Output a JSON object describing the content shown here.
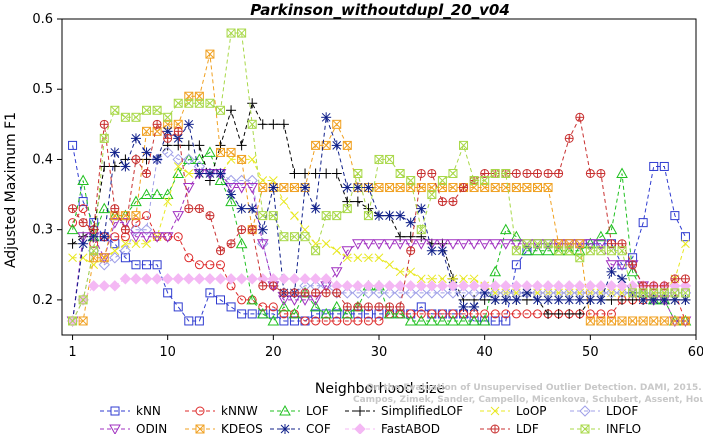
{
  "chart_data": {
    "type": "line",
    "title": "Parkinson_withoutdupl_20_v04",
    "xlabel": "Neighborhood size",
    "ylabel": "Adjusted Maximum F1",
    "xlim": [
      0,
      60
    ],
    "ylim": [
      0.15,
      0.6
    ],
    "xticks": [
      1,
      10,
      20,
      30,
      40,
      50,
      60
    ],
    "yticks": [
      0.2,
      0.3,
      0.4,
      0.5,
      0.6
    ],
    "grid": false,
    "legend_position": "bottom",
    "watermark": [
      "Campos, Zimek, Sander, Campello, Micenkova, Schubert, Assent, Houle",
      "On the Evaluation of Unsupervised Outlier Detection. DAMI, 2015."
    ],
    "x": [
      1,
      2,
      3,
      4,
      5,
      6,
      7,
      8,
      9,
      10,
      11,
      12,
      13,
      14,
      15,
      16,
      17,
      18,
      19,
      20,
      21,
      22,
      23,
      24,
      25,
      26,
      27,
      28,
      29,
      30,
      31,
      32,
      33,
      34,
      35,
      36,
      37,
      38,
      39,
      40,
      41,
      42,
      43,
      44,
      45,
      46,
      47,
      48,
      49,
      50,
      51,
      52,
      53,
      54,
      55,
      56,
      57,
      58,
      59
    ],
    "series": [
      {
        "name": "kNN",
        "color": "#2f3bd0",
        "marker": "square",
        "line": "dashed",
        "values": [
          0.42,
          0.34,
          0.31,
          0.29,
          0.28,
          0.26,
          0.25,
          0.25,
          0.25,
          0.21,
          0.19,
          0.17,
          0.17,
          0.21,
          0.2,
          0.19,
          0.18,
          0.18,
          0.18,
          0.18,
          0.17,
          0.17,
          0.17,
          0.18,
          0.18,
          0.18,
          0.18,
          0.18,
          0.18,
          0.18,
          0.18,
          0.18,
          0.18,
          0.19,
          0.18,
          0.18,
          0.18,
          0.18,
          0.17,
          0.17,
          0.17,
          0.17,
          0.25,
          0.27,
          0.28,
          0.28,
          0.28,
          0.28,
          0.28,
          0.28,
          0.28,
          0.28,
          0.25,
          0.26,
          0.31,
          0.39,
          0.39,
          0.32,
          0.29
        ]
      },
      {
        "name": "kNNW",
        "color": "#dd2a2a",
        "marker": "circle",
        "line": "dashed",
        "values": [
          0.31,
          0.33,
          0.28,
          0.29,
          0.29,
          0.29,
          0.31,
          0.32,
          0.29,
          0.29,
          0.29,
          0.26,
          0.25,
          0.25,
          0.25,
          0.22,
          0.2,
          0.2,
          0.19,
          0.19,
          0.18,
          0.18,
          0.17,
          0.17,
          0.17,
          0.17,
          0.17,
          0.17,
          0.17,
          0.17,
          0.18,
          0.18,
          0.18,
          0.18,
          0.18,
          0.18,
          0.18,
          0.18,
          0.18,
          0.18,
          0.18,
          0.18,
          0.18,
          0.18,
          0.18,
          0.18,
          0.18,
          0.18,
          0.18,
          0.18,
          0.18,
          0.18,
          0.2,
          0.2,
          0.2,
          0.21,
          0.21,
          0.21,
          0.17
        ]
      },
      {
        "name": "LOF",
        "color": "#20c020",
        "marker": "triangle-up",
        "line": "dashed",
        "values": [
          0.3,
          0.37,
          0.29,
          0.33,
          0.32,
          0.32,
          0.34,
          0.35,
          0.35,
          0.35,
          0.38,
          0.4,
          0.4,
          0.41,
          0.37,
          0.34,
          0.28,
          0.2,
          0.18,
          0.17,
          0.19,
          0.18,
          0.21,
          0.19,
          0.18,
          0.19,
          0.18,
          0.19,
          0.22,
          0.22,
          0.18,
          0.18,
          0.17,
          0.17,
          0.17,
          0.17,
          0.17,
          0.17,
          0.17,
          0.17,
          0.24,
          0.3,
          0.29,
          0.27,
          0.27,
          0.27,
          0.27,
          0.27,
          0.27,
          0.28,
          0.29,
          0.3,
          0.38,
          0.24,
          0.21,
          0.2,
          0.2,
          0.17,
          0.17
        ]
      },
      {
        "name": "SimplifiedLOF",
        "color": "#000000",
        "marker": "plus",
        "line": "dashed",
        "values": [
          0.28,
          0.29,
          0.3,
          0.39,
          0.39,
          0.4,
          0.4,
          0.4,
          0.4,
          0.42,
          0.42,
          0.42,
          0.42,
          0.37,
          0.42,
          0.47,
          0.42,
          0.48,
          0.45,
          0.45,
          0.45,
          0.38,
          0.38,
          0.38,
          0.38,
          0.38,
          0.34,
          0.34,
          0.33,
          0.32,
          0.32,
          0.29,
          0.29,
          0.29,
          0.28,
          0.28,
          0.23,
          0.2,
          0.2,
          0.2,
          0.2,
          0.2,
          0.2,
          0.2,
          0.2,
          0.18,
          0.18,
          0.18,
          0.18,
          0.2,
          0.2,
          0.2,
          0.2,
          0.2,
          0.2,
          0.2,
          0.2,
          0.2,
          0.2
        ]
      },
      {
        "name": "LoOP",
        "color": "#e8e820",
        "marker": "x",
        "line": "dashed",
        "values": [
          0.26,
          0.26,
          0.25,
          0.26,
          0.27,
          0.28,
          0.28,
          0.28,
          0.29,
          0.34,
          0.39,
          0.38,
          0.38,
          0.38,
          0.38,
          0.4,
          0.4,
          0.4,
          0.37,
          0.37,
          0.34,
          0.32,
          0.3,
          0.28,
          0.28,
          0.27,
          0.26,
          0.26,
          0.26,
          0.26,
          0.25,
          0.24,
          0.24,
          0.23,
          0.23,
          0.23,
          0.23,
          0.23,
          0.23,
          0.22,
          0.21,
          0.21,
          0.21,
          0.21,
          0.21,
          0.21,
          0.21,
          0.21,
          0.21,
          0.21,
          0.21,
          0.21,
          0.21,
          0.21,
          0.21,
          0.21,
          0.21,
          0.23,
          0.28
        ]
      },
      {
        "name": "LDOF",
        "color": "#a0a0e8",
        "marker": "diamond",
        "line": "dashed",
        "values": [
          0.17,
          0.2,
          0.27,
          0.25,
          0.26,
          0.27,
          0.3,
          0.3,
          0.4,
          0.41,
          0.4,
          0.4,
          0.39,
          0.38,
          0.38,
          0.37,
          0.37,
          0.37,
          0.28,
          0.22,
          0.21,
          0.21,
          0.22,
          0.22,
          0.22,
          0.21,
          0.21,
          0.21,
          0.21,
          0.21,
          0.21,
          0.21,
          0.21,
          0.21,
          0.21,
          0.21,
          0.21,
          0.21,
          0.21,
          0.21,
          0.21,
          0.21,
          0.21,
          0.21,
          0.21,
          0.21,
          0.21,
          0.21,
          0.21,
          0.21,
          0.21,
          0.21,
          0.21,
          0.21,
          0.21,
          0.21,
          0.21,
          0.21,
          0.21
        ]
      },
      {
        "name": "ODIN",
        "color": "#a030c0",
        "marker": "triangle-down",
        "line": "dashed",
        "values": [
          0.17,
          0.29,
          0.29,
          0.26,
          0.31,
          0.31,
          0.29,
          0.29,
          0.29,
          0.29,
          0.32,
          0.36,
          0.38,
          0.38,
          0.38,
          0.36,
          0.36,
          0.36,
          0.28,
          0.22,
          0.2,
          0.2,
          0.2,
          0.2,
          0.22,
          0.24,
          0.27,
          0.28,
          0.28,
          0.28,
          0.28,
          0.28,
          0.28,
          0.28,
          0.28,
          0.28,
          0.28,
          0.28,
          0.28,
          0.28,
          0.28,
          0.28,
          0.28,
          0.28,
          0.28,
          0.28,
          0.28,
          0.28,
          0.28,
          0.28,
          0.28,
          0.25,
          0.25,
          0.25,
          0.22,
          0.2,
          0.2,
          0.17,
          0.17
        ]
      },
      {
        "name": "KDEOS",
        "color": "#f0a020",
        "marker": "box-x",
        "line": "dashed",
        "values": [
          0.17,
          0.17,
          0.26,
          0.26,
          0.32,
          0.32,
          0.32,
          0.44,
          0.44,
          0.45,
          0.45,
          0.49,
          0.49,
          0.55,
          0.41,
          0.41,
          0.4,
          0.3,
          0.36,
          0.36,
          0.36,
          0.36,
          0.36,
          0.42,
          0.42,
          0.45,
          0.42,
          0.36,
          0.36,
          0.36,
          0.36,
          0.36,
          0.36,
          0.36,
          0.36,
          0.36,
          0.36,
          0.36,
          0.36,
          0.36,
          0.36,
          0.36,
          0.36,
          0.36,
          0.36,
          0.36,
          0.28,
          0.28,
          0.28,
          0.17,
          0.17,
          0.17,
          0.17,
          0.17,
          0.17,
          0.17,
          0.17,
          0.17,
          0.17
        ]
      },
      {
        "name": "COF",
        "color": "#10208a",
        "marker": "star",
        "line": "dashed",
        "values": [
          0.17,
          0.28,
          0.29,
          0.29,
          0.41,
          0.39,
          0.43,
          0.41,
          0.4,
          0.44,
          0.43,
          0.45,
          0.38,
          0.38,
          0.38,
          0.35,
          0.33,
          0.33,
          0.3,
          0.36,
          0.21,
          0.21,
          0.36,
          0.33,
          0.46,
          0.42,
          0.36,
          0.36,
          0.36,
          0.32,
          0.32,
          0.32,
          0.31,
          0.33,
          0.27,
          0.27,
          0.22,
          0.19,
          0.19,
          0.21,
          0.2,
          0.2,
          0.2,
          0.21,
          0.2,
          0.2,
          0.2,
          0.2,
          0.2,
          0.2,
          0.2,
          0.24,
          0.23,
          0.21,
          0.2,
          0.2,
          0.2,
          0.2,
          0.2
        ]
      },
      {
        "name": "FastABOD",
        "color": "#f4b8f4",
        "marker": "diamond-filled",
        "line": "dashed",
        "values": [
          0.17,
          0.2,
          0.22,
          0.22,
          0.22,
          0.23,
          0.23,
          0.23,
          0.23,
          0.23,
          0.23,
          0.23,
          0.23,
          0.23,
          0.23,
          0.23,
          0.23,
          0.23,
          0.23,
          0.23,
          0.23,
          0.23,
          0.23,
          0.23,
          0.23,
          0.22,
          0.22,
          0.22,
          0.22,
          0.22,
          0.22,
          0.22,
          0.22,
          0.22,
          0.22,
          0.22,
          0.22,
          0.22,
          0.22,
          0.22,
          0.22,
          0.22,
          0.22,
          0.22,
          0.22,
          0.22,
          0.22,
          0.22,
          0.22,
          0.22,
          0.22,
          0.22,
          0.22,
          0.22,
          0.22,
          0.22,
          0.22,
          0.22,
          0.22
        ]
      },
      {
        "name": "LDF",
        "color": "#c83030",
        "marker": "circle-plus",
        "line": "dashed",
        "values": [
          0.33,
          0.31,
          0.3,
          0.45,
          0.33,
          0.3,
          0.4,
          0.38,
          0.45,
          0.43,
          0.44,
          0.33,
          0.33,
          0.32,
          0.27,
          0.28,
          0.3,
          0.3,
          0.22,
          0.22,
          0.21,
          0.21,
          0.21,
          0.21,
          0.21,
          0.21,
          0.19,
          0.19,
          0.19,
          0.19,
          0.19,
          0.19,
          0.27,
          0.38,
          0.38,
          0.34,
          0.34,
          0.36,
          0.37,
          0.38,
          0.38,
          0.38,
          0.38,
          0.38,
          0.38,
          0.38,
          0.38,
          0.43,
          0.46,
          0.38,
          0.38,
          0.28,
          0.28,
          0.25,
          0.22,
          0.22,
          0.22,
          0.23,
          0.23
        ]
      },
      {
        "name": "INFLO",
        "color": "#a8d848",
        "marker": "box-x",
        "line": "dashed",
        "values": [
          0.17,
          0.2,
          0.27,
          0.43,
          0.47,
          0.46,
          0.46,
          0.47,
          0.47,
          0.46,
          0.48,
          0.48,
          0.48,
          0.48,
          0.47,
          0.58,
          0.58,
          0.45,
          0.32,
          0.32,
          0.29,
          0.29,
          0.29,
          0.27,
          0.32,
          0.32,
          0.33,
          0.38,
          0.32,
          0.4,
          0.4,
          0.38,
          0.37,
          0.3,
          0.35,
          0.37,
          0.38,
          0.42,
          0.37,
          0.37,
          0.38,
          0.38,
          0.27,
          0.28,
          0.28,
          0.28,
          0.27,
          0.27,
          0.26,
          0.27,
          0.27,
          0.27,
          0.27,
          0.21,
          0.21,
          0.21,
          0.21,
          0.21,
          0.21
        ]
      }
    ],
    "legend": [
      {
        "name": "kNN",
        "marker": "square",
        "color": "#2f3bd0"
      },
      {
        "name": "kNNW",
        "marker": "circle",
        "color": "#dd2a2a"
      },
      {
        "name": "LOF",
        "marker": "triangle-up",
        "color": "#20c020"
      },
      {
        "name": "SimplifiedLOF",
        "marker": "plus",
        "color": "#000000"
      },
      {
        "name": "LoOP",
        "marker": "x",
        "color": "#e8e820"
      },
      {
        "name": "LDOF",
        "marker": "diamond",
        "color": "#a0a0e8"
      },
      {
        "name": "ODIN",
        "marker": "triangle-down",
        "color": "#a030c0"
      },
      {
        "name": "KDEOS",
        "marker": "box-x",
        "color": "#f0a020"
      },
      {
        "name": "COF",
        "marker": "star",
        "color": "#10208a"
      },
      {
        "name": "FastABOD",
        "marker": "diamond-filled",
        "color": "#f4b8f4"
      },
      {
        "name": "LDF",
        "marker": "circle-plus",
        "color": "#c83030"
      },
      {
        "name": "INFLO",
        "marker": "box-x",
        "color": "#a8d848"
      }
    ]
  }
}
